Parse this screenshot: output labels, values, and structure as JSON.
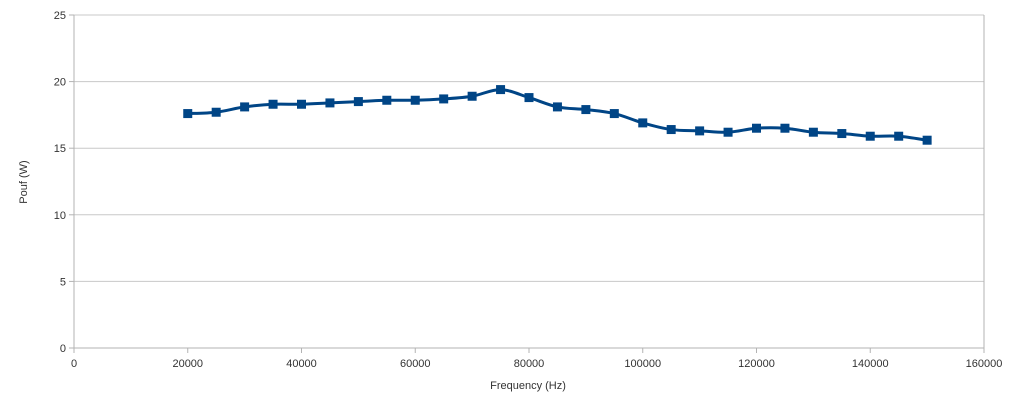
{
  "chart_data": {
    "type": "line",
    "title": "",
    "xlabel": "Frequency (Hz)",
    "ylabel": "Pouf (W)",
    "xlim": [
      0,
      160000
    ],
    "ylim": [
      0,
      25
    ],
    "x_ticks": [
      "0",
      "20000",
      "40000",
      "60000",
      "80000",
      "100000",
      "120000",
      "140000",
      "160000"
    ],
    "x_tick_values": [
      0,
      20000,
      40000,
      60000,
      80000,
      100000,
      120000,
      140000,
      160000
    ],
    "y_ticks": [
      "0",
      "5",
      "10",
      "15",
      "20",
      "25"
    ],
    "y_tick_values": [
      0,
      5,
      10,
      15,
      20,
      25
    ],
    "grid": "horizontal",
    "legend": "none",
    "series": [
      {
        "color": "#004586",
        "marker": "square",
        "x": [
          20000,
          25000,
          30000,
          35000,
          40000,
          45000,
          50000,
          55000,
          60000,
          65000,
          70000,
          75000,
          80000,
          85000,
          90000,
          95000,
          100000,
          105000,
          110000,
          115000,
          120000,
          125000,
          130000,
          135000,
          140000,
          145000,
          150000
        ],
        "y": [
          17.6,
          17.7,
          18.1,
          18.3,
          18.3,
          18.4,
          18.5,
          18.6,
          18.6,
          18.7,
          18.9,
          19.4,
          18.8,
          18.1,
          17.9,
          17.6,
          16.9,
          16.4,
          16.3,
          16.2,
          16.5,
          16.5,
          16.2,
          16.1,
          15.9,
          15.9,
          15.6
        ]
      }
    ]
  }
}
